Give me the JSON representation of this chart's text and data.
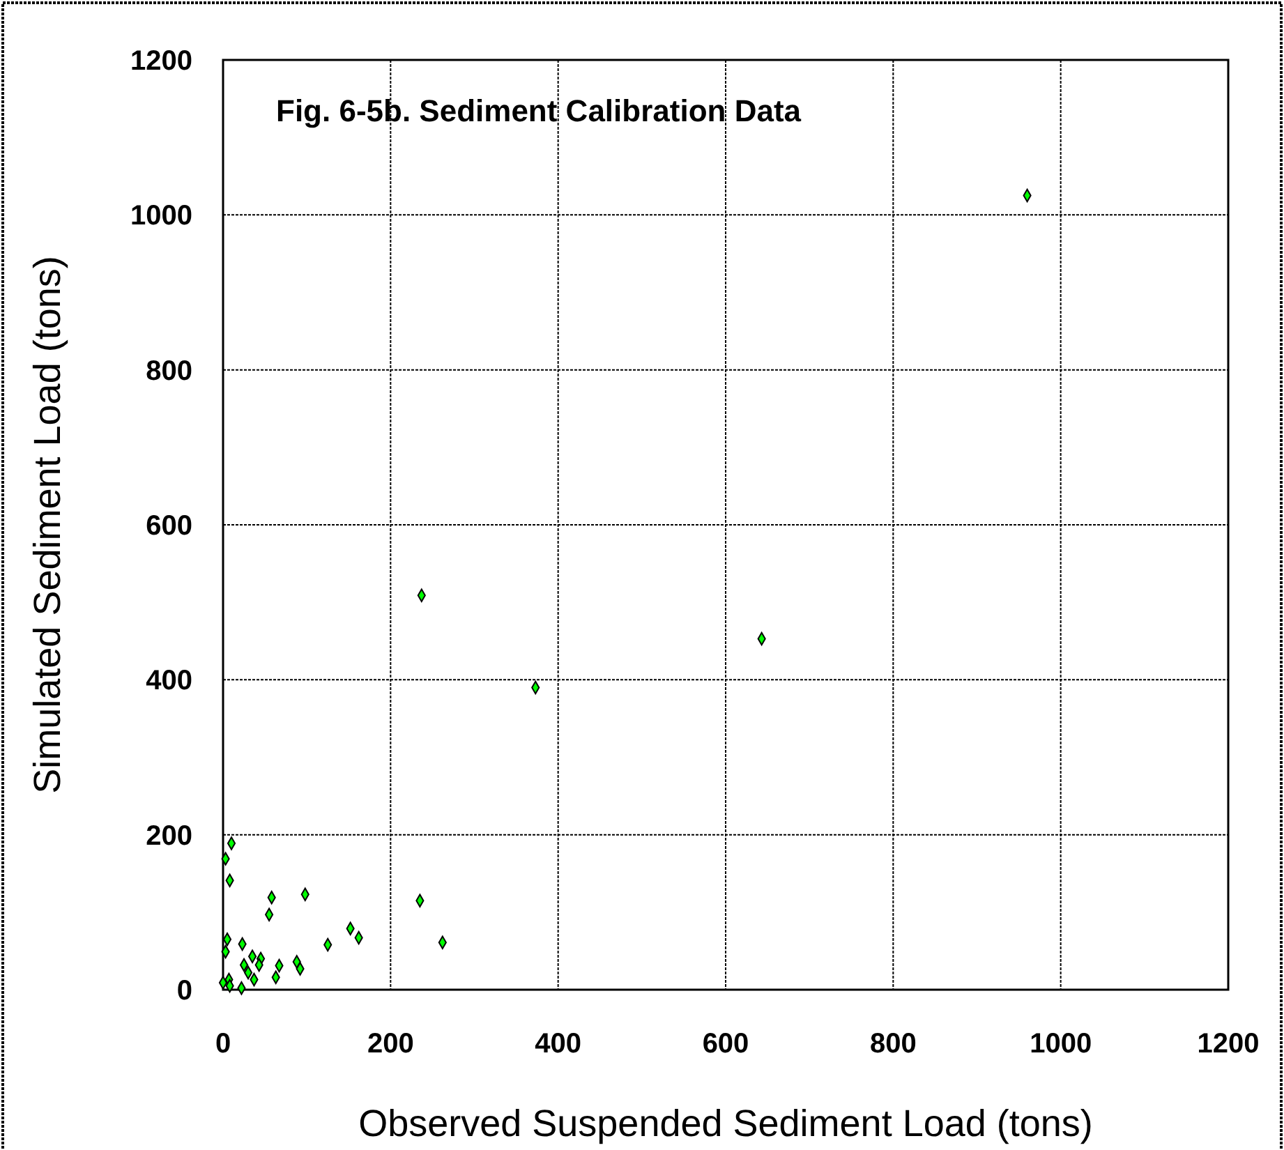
{
  "chart_data": {
    "type": "scatter",
    "title": "Fig. 6-5b.  Sediment Calibration Data",
    "xlabel": "Observed Suspended Sediment Load (tons)",
    "ylabel": "Simulated Sediment Load (tons)",
    "x": [
      10,
      3,
      8,
      58,
      98,
      55,
      235,
      152,
      162,
      125,
      262,
      5,
      3,
      23,
      35,
      45,
      25,
      43,
      67,
      88,
      92,
      63,
      30,
      37,
      7,
      8,
      22,
      0,
      237,
      373,
      643,
      960
    ],
    "series": [
      {
        "color": "#00ff00",
        "values": [
          189,
          169,
          141,
          119,
          123,
          97,
          115,
          79,
          67,
          58,
          61,
          65,
          49,
          59,
          43,
          40,
          32,
          32,
          31,
          36,
          27,
          16,
          22,
          13,
          13,
          5,
          2,
          9,
          509,
          390,
          453,
          1025
        ]
      }
    ],
    "xlim": [
      0,
      1200
    ],
    "ylim": [
      0,
      1200
    ],
    "xticks": [
      0,
      200,
      400,
      600,
      800,
      1000,
      1200
    ],
    "yticks": [
      0,
      200,
      400,
      600,
      800,
      1000,
      1200
    ],
    "grid": true,
    "marker": "diamond"
  }
}
